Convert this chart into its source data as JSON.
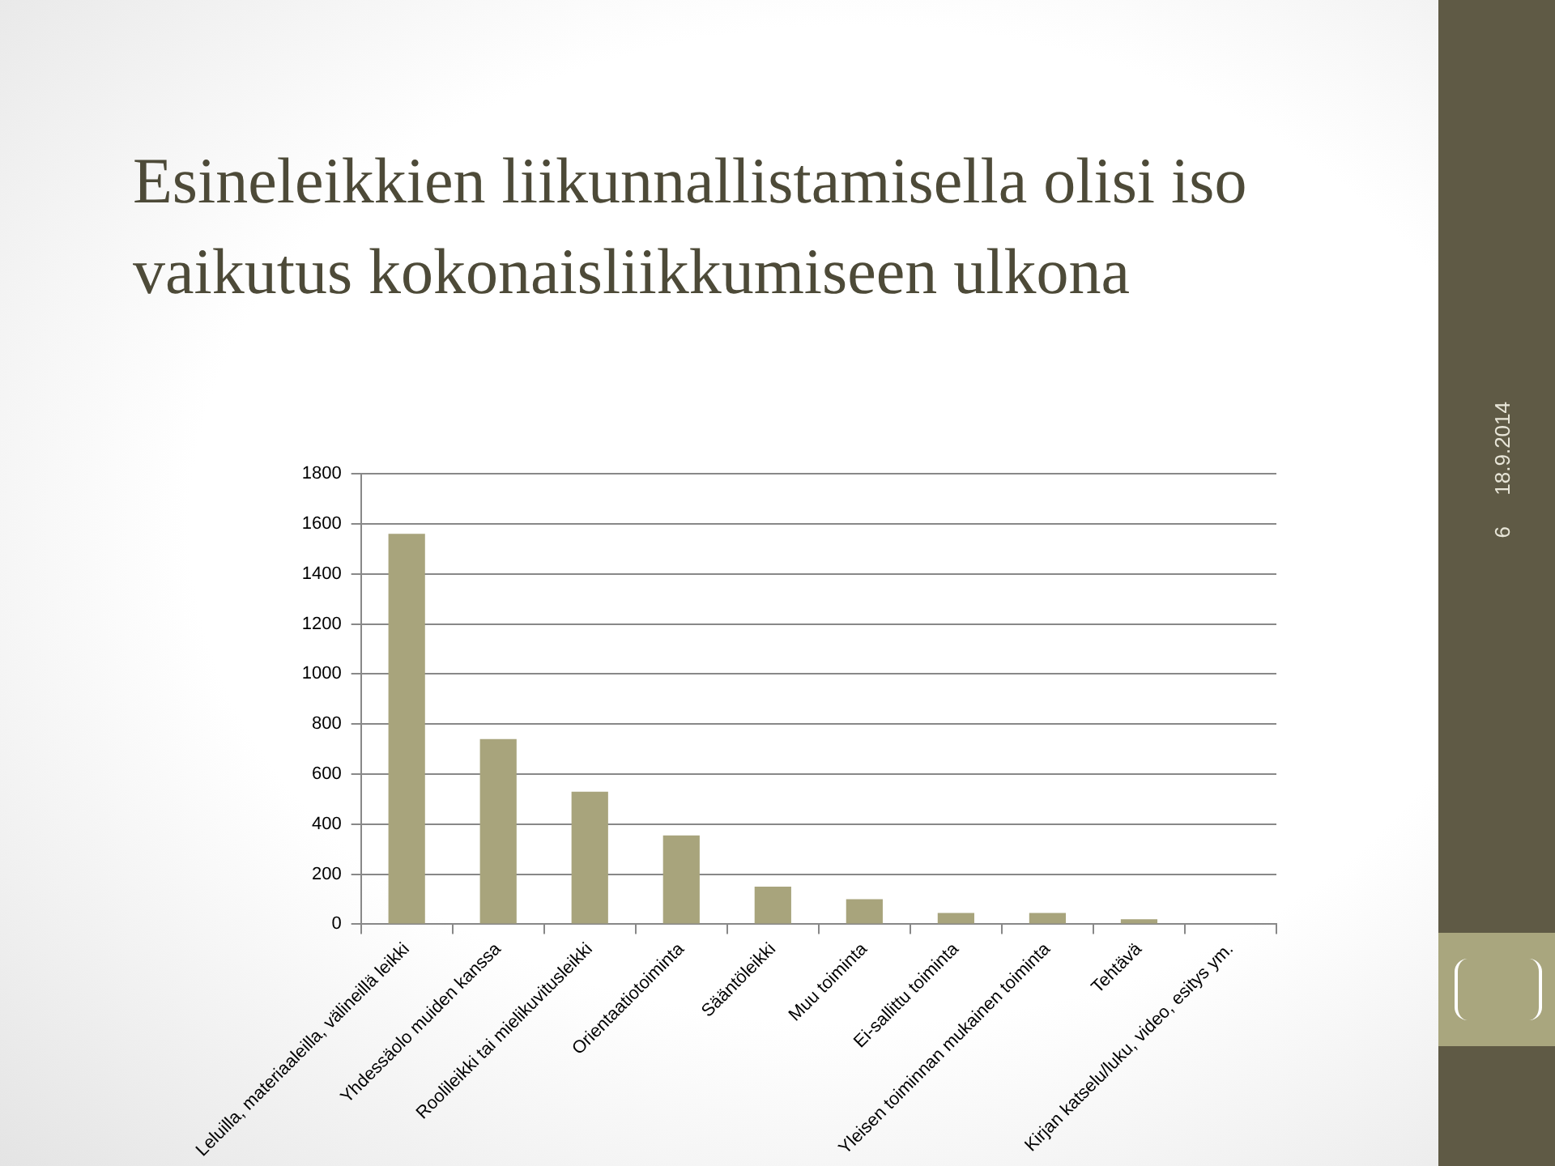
{
  "chart_data": {
    "type": "bar",
    "title": "Esineleikkien liikunnallistamisella olisi iso vaikutus kokonaisliikkumiseen ulkona",
    "categories": [
      "Leluilla, materiaaleilla, välineillä leikki",
      "Yhdessäolo muiden kanssa",
      "Roolileikki tai mielikuvitusleikki",
      "Orientaatiotoiminta",
      "Sääntöleikki",
      "Muu toiminta",
      "Ei-sallittu toiminta",
      "Yleisen toiminnan mukainen toiminta",
      "Tehtävä",
      "Kirjan katselu/luku, video, esitys ym."
    ],
    "values": [
      1560,
      740,
      530,
      355,
      150,
      100,
      45,
      45,
      20,
      3
    ],
    "color": "#a8a47c",
    "ylim": [
      0,
      1800
    ],
    "yticks": [
      0,
      200,
      400,
      600,
      800,
      1000,
      1200,
      1400,
      1600,
      1800
    ],
    "grid": "y",
    "annotations": [
      "18.9.2014",
      "6"
    ]
  }
}
